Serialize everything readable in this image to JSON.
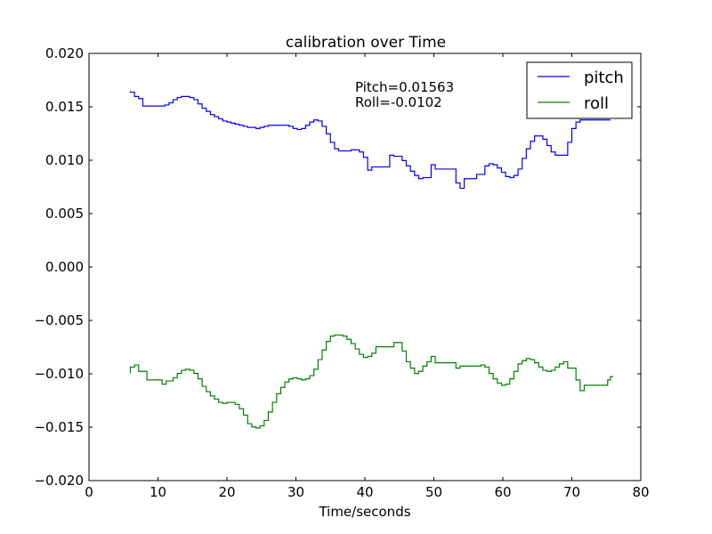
{
  "chart_data": {
    "type": "line",
    "title": "calibration over Time",
    "xlabel": "Time/seconds",
    "ylabel": "",
    "xlim": [
      0,
      80
    ],
    "ylim": [
      -0.02,
      0.02
    ],
    "x_ticks": [
      0,
      10,
      20,
      30,
      40,
      50,
      60,
      70,
      80
    ],
    "x_tick_labels": [
      "0",
      "10",
      "20",
      "30",
      "40",
      "50",
      "60",
      "70",
      "80"
    ],
    "y_ticks": [
      -0.02,
      -0.015,
      -0.01,
      -0.005,
      0.0,
      0.005,
      0.01,
      0.015,
      0.02
    ],
    "y_tick_labels": [
      "−0.020",
      "−0.015",
      "−0.010",
      "−0.005",
      "0.000",
      "0.005",
      "0.010",
      "0.015",
      "0.020"
    ],
    "grid": false,
    "legend_position": "top-right",
    "step_mode": "steps-pre",
    "annotations": [
      "Pitch=0.01563",
      "Roll=-0.0102"
    ],
    "series": [
      {
        "name": "pitch",
        "color": "#0000ff",
        "points": [
          [
            6.0,
            0.01647
          ],
          [
            6.6,
            0.01637
          ],
          [
            7.2,
            0.01597
          ],
          [
            7.8,
            0.01577
          ],
          [
            8.4,
            0.01507
          ],
          [
            11.0,
            0.01507
          ],
          [
            11.6,
            0.01517
          ],
          [
            12.2,
            0.01537
          ],
          [
            12.8,
            0.01567
          ],
          [
            13.4,
            0.01587
          ],
          [
            14.0,
            0.01597
          ],
          [
            14.6,
            0.01597
          ],
          [
            15.2,
            0.01587
          ],
          [
            15.8,
            0.01567
          ],
          [
            16.4,
            0.01527
          ],
          [
            17.0,
            0.01487
          ],
          [
            17.6,
            0.01457
          ],
          [
            18.2,
            0.01427
          ],
          [
            18.8,
            0.01407
          ],
          [
            19.4,
            0.01387
          ],
          [
            20.0,
            0.01367
          ],
          [
            20.6,
            0.01357
          ],
          [
            21.2,
            0.01347
          ],
          [
            21.8,
            0.01337
          ],
          [
            22.4,
            0.01327
          ],
          [
            23.0,
            0.01317
          ],
          [
            23.6,
            0.01307
          ],
          [
            24.2,
            0.01307
          ],
          [
            24.8,
            0.01297
          ],
          [
            25.4,
            0.01307
          ],
          [
            26.0,
            0.01317
          ],
          [
            26.6,
            0.01327
          ],
          [
            27.2,
            0.01327
          ],
          [
            27.8,
            0.01327
          ],
          [
            28.4,
            0.01327
          ],
          [
            29.0,
            0.01327
          ],
          [
            29.6,
            0.01317
          ],
          [
            30.2,
            0.01297
          ],
          [
            30.8,
            0.01287
          ],
          [
            31.4,
            0.01297
          ],
          [
            32.0,
            0.01327
          ],
          [
            32.6,
            0.01357
          ],
          [
            33.2,
            0.01377
          ],
          [
            33.8,
            0.01367
          ],
          [
            34.4,
            0.01317
          ],
          [
            35.0,
            0.01247
          ],
          [
            35.6,
            0.01167
          ],
          [
            36.2,
            0.01107
          ],
          [
            36.8,
            0.01087
          ],
          [
            37.4,
            0.01087
          ],
          [
            38.0,
            0.01087
          ],
          [
            38.6,
            0.01097
          ],
          [
            39.2,
            0.01097
          ],
          [
            39.8,
            0.01077
          ],
          [
            40.4,
            0.01027
          ],
          [
            41.0,
            0.00907
          ],
          [
            43.6,
            0.00937
          ],
          [
            44.2,
            0.01047
          ],
          [
            45.4,
            0.01037
          ],
          [
            46.0,
            0.00997
          ],
          [
            46.6,
            0.00947
          ],
          [
            47.2,
            0.00897
          ],
          [
            47.8,
            0.00857
          ],
          [
            48.4,
            0.00827
          ],
          [
            49.6,
            0.00837
          ],
          [
            50.2,
            0.00957
          ],
          [
            53.2,
            0.00917
          ],
          [
            53.8,
            0.00787
          ],
          [
            54.4,
            0.00737
          ],
          [
            56.2,
            0.00827
          ],
          [
            57.4,
            0.00867
          ],
          [
            58.0,
            0.00947
          ],
          [
            58.6,
            0.00967
          ],
          [
            59.2,
            0.00957
          ],
          [
            59.8,
            0.00927
          ],
          [
            60.4,
            0.00887
          ],
          [
            61.0,
            0.00847
          ],
          [
            61.6,
            0.00837
          ],
          [
            62.2,
            0.00857
          ],
          [
            62.8,
            0.00917
          ],
          [
            63.4,
            0.01017
          ],
          [
            64.0,
            0.01107
          ],
          [
            64.6,
            0.01177
          ],
          [
            65.2,
            0.01227
          ],
          [
            65.8,
            0.01227
          ],
          [
            66.4,
            0.01197
          ],
          [
            67.0,
            0.01137
          ],
          [
            67.6,
            0.01077
          ],
          [
            68.2,
            0.01047
          ],
          [
            69.4,
            0.01047
          ],
          [
            70.0,
            0.01167
          ],
          [
            70.6,
            0.01297
          ],
          [
            71.2,
            0.01357
          ],
          [
            72.0,
            0.01377
          ],
          [
            75.6,
            0.01377
          ]
        ]
      },
      {
        "name": "roll",
        "color": "#008000",
        "points": [
          [
            6.0,
            -0.00997
          ],
          [
            6.6,
            -0.00937
          ],
          [
            7.2,
            -0.00917
          ],
          [
            8.4,
            -0.00977
          ],
          [
            10.6,
            -0.01057
          ],
          [
            11.2,
            -0.01097
          ],
          [
            12.2,
            -0.01067
          ],
          [
            12.8,
            -0.01037
          ],
          [
            13.4,
            -0.00997
          ],
          [
            14.0,
            -0.00967
          ],
          [
            14.6,
            -0.00957
          ],
          [
            15.2,
            -0.00967
          ],
          [
            15.8,
            -0.00997
          ],
          [
            16.4,
            -0.01047
          ],
          [
            17.0,
            -0.01117
          ],
          [
            17.6,
            -0.01167
          ],
          [
            18.2,
            -0.01207
          ],
          [
            18.8,
            -0.01237
          ],
          [
            19.4,
            -0.01267
          ],
          [
            20.0,
            -0.01277
          ],
          [
            20.6,
            -0.01267
          ],
          [
            21.2,
            -0.01267
          ],
          [
            21.8,
            -0.01287
          ],
          [
            22.4,
            -0.01327
          ],
          [
            23.0,
            -0.01387
          ],
          [
            23.6,
            -0.01467
          ],
          [
            24.2,
            -0.01497
          ],
          [
            24.8,
            -0.01507
          ],
          [
            25.4,
            -0.01487
          ],
          [
            26.0,
            -0.01437
          ],
          [
            26.6,
            -0.01357
          ],
          [
            27.2,
            -0.01267
          ],
          [
            27.8,
            -0.01187
          ],
          [
            28.4,
            -0.01127
          ],
          [
            29.0,
            -0.01077
          ],
          [
            29.6,
            -0.01047
          ],
          [
            30.2,
            -0.01037
          ],
          [
            30.8,
            -0.01047
          ],
          [
            31.4,
            -0.01057
          ],
          [
            32.0,
            -0.01047
          ],
          [
            32.6,
            -0.01017
          ],
          [
            33.2,
            -0.00957
          ],
          [
            33.8,
            -0.00867
          ],
          [
            34.4,
            -0.00777
          ],
          [
            35.0,
            -0.00697
          ],
          [
            35.6,
            -0.00647
          ],
          [
            36.2,
            -0.00637
          ],
          [
            36.8,
            -0.00637
          ],
          [
            37.4,
            -0.00647
          ],
          [
            38.0,
            -0.00677
          ],
          [
            38.6,
            -0.00717
          ],
          [
            39.2,
            -0.00767
          ],
          [
            39.8,
            -0.00817
          ],
          [
            40.4,
            -0.00847
          ],
          [
            41.0,
            -0.00837
          ],
          [
            41.6,
            -0.00807
          ],
          [
            44.2,
            -0.00747
          ],
          [
            45.4,
            -0.00707
          ],
          [
            46.0,
            -0.00787
          ],
          [
            46.6,
            -0.00887
          ],
          [
            47.2,
            -0.00947
          ],
          [
            47.8,
            -0.00997
          ],
          [
            48.4,
            -0.00977
          ],
          [
            49.0,
            -0.00927
          ],
          [
            49.6,
            -0.00887
          ],
          [
            50.2,
            -0.00837
          ],
          [
            53.2,
            -0.00897
          ],
          [
            53.8,
            -0.00947
          ],
          [
            56.8,
            -0.00927
          ],
          [
            57.4,
            -0.00917
          ],
          [
            58.0,
            -0.00937
          ],
          [
            58.6,
            -0.00997
          ],
          [
            59.2,
            -0.01047
          ],
          [
            59.8,
            -0.01087
          ],
          [
            60.4,
            -0.01107
          ],
          [
            61.0,
            -0.01097
          ],
          [
            61.6,
            -0.01047
          ],
          [
            62.2,
            -0.00977
          ],
          [
            62.8,
            -0.00907
          ],
          [
            63.4,
            -0.00877
          ],
          [
            64.0,
            -0.00857
          ],
          [
            64.6,
            -0.00867
          ],
          [
            65.2,
            -0.00897
          ],
          [
            65.8,
            -0.00937
          ],
          [
            66.4,
            -0.00967
          ],
          [
            67.0,
            -0.00977
          ],
          [
            67.6,
            -0.00967
          ],
          [
            68.2,
            -0.00937
          ],
          [
            68.8,
            -0.00907
          ],
          [
            69.4,
            -0.00887
          ],
          [
            70.6,
            -0.00947
          ],
          [
            71.2,
            -0.01057
          ],
          [
            71.8,
            -0.01157
          ],
          [
            75.2,
            -0.01107
          ],
          [
            75.6,
            -0.01057
          ],
          [
            76.0,
            -0.01027
          ]
        ]
      }
    ]
  }
}
